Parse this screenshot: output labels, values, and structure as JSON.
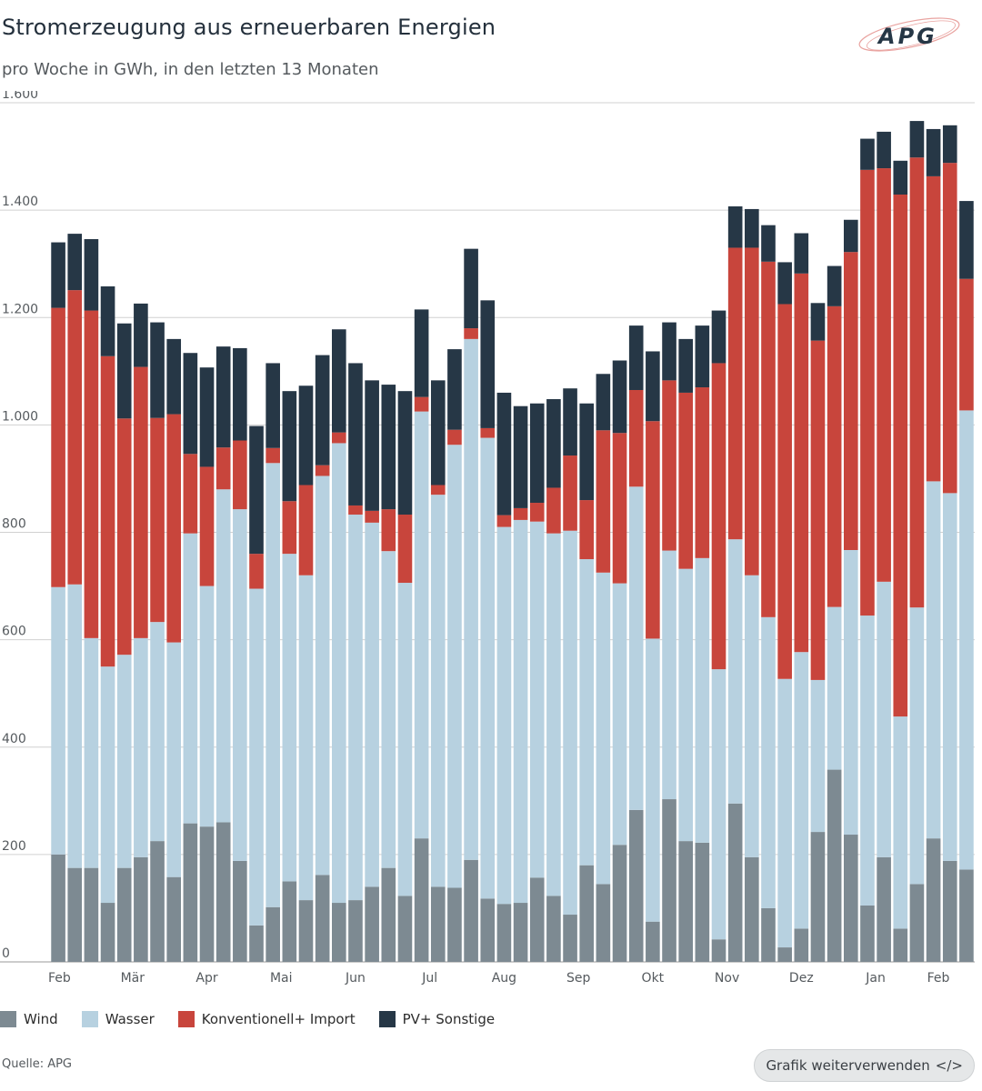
{
  "header": {
    "title": "Stromerzeugung aus erneuerbaren Energien",
    "subtitle": "pro Woche in GWh, in den letzten 13 Monaten",
    "logo_text": "APG"
  },
  "footer": {
    "source": "Quelle: APG",
    "reuse_label": "Grafik weiterverwenden",
    "reuse_icon": "</>"
  },
  "colors": {
    "wind": "#7d8a92",
    "wasser": "#b7d1e0",
    "konventionell": "#c8453c",
    "pv": "#263746",
    "grid": "#d0d0d0",
    "axis_text": "#555a5e"
  },
  "legend": [
    {
      "key": "wind",
      "label": "Wind"
    },
    {
      "key": "wasser",
      "label": "Wasser"
    },
    {
      "key": "konventionell",
      "label": "Konventionell+ Import"
    },
    {
      "key": "pv",
      "label": "PV+ Sonstige"
    }
  ],
  "chart_data": {
    "type": "bar",
    "stacked": true,
    "title": "Stromerzeugung aus erneuerbaren Energien",
    "ylabel": "GWh",
    "ylim": [
      0,
      1600
    ],
    "yticks": [
      0,
      200,
      400,
      600,
      800,
      1000,
      1200,
      1400,
      1600
    ],
    "ytick_labels": [
      "0",
      "200",
      "400",
      "600",
      "800",
      "1.000",
      "1.200",
      "1.400",
      "1.600"
    ],
    "month_labels": [
      {
        "label": "Feb",
        "index": 0
      },
      {
        "label": "Mär",
        "index": 4.5
      },
      {
        "label": "Apr",
        "index": 9
      },
      {
        "label": "Mai",
        "index": 13.5
      },
      {
        "label": "Jun",
        "index": 18
      },
      {
        "label": "Jul",
        "index": 22.5
      },
      {
        "label": "Aug",
        "index": 27
      },
      {
        "label": "Sep",
        "index": 31.5
      },
      {
        "label": "Okt",
        "index": 36
      },
      {
        "label": "Nov",
        "index": 40.5
      },
      {
        "label": "Dez",
        "index": 45
      },
      {
        "label": "Jan",
        "index": 49.5
      },
      {
        "label": "Feb",
        "index": 53.3
      }
    ],
    "series": [
      {
        "name": "Wind",
        "key": "wind",
        "values": [
          200,
          175,
          175,
          110,
          175,
          195,
          225,
          158,
          258,
          252,
          260,
          188,
          68,
          102,
          150,
          115,
          162,
          110,
          115,
          140,
          175,
          123,
          230,
          140,
          138,
          190,
          118,
          108,
          110,
          157,
          123,
          88,
          180,
          145,
          218,
          283,
          75,
          303,
          225,
          222,
          42,
          295,
          195,
          100,
          27,
          62,
          242,
          358,
          237,
          105,
          195,
          62,
          145,
          230,
          188,
          172
        ]
      },
      {
        "name": "Wasser",
        "key": "wasser",
        "values": [
          498,
          528,
          428,
          440,
          397,
          408,
          408,
          437,
          540,
          448,
          620,
          655,
          627,
          827,
          610,
          605,
          743,
          856,
          718,
          678,
          590,
          583,
          795,
          730,
          825,
          970,
          858,
          702,
          713,
          663,
          675,
          715,
          570,
          580,
          487,
          602,
          527,
          463,
          507,
          530,
          503,
          492,
          525,
          542,
          500,
          515,
          283,
          303,
          530,
          540,
          513,
          395,
          515,
          665,
          685,
          855
        ]
      },
      {
        "name": "Konventionell+ Import",
        "key": "konventionell",
        "values": [
          520,
          548,
          610,
          578,
          440,
          505,
          380,
          425,
          148,
          222,
          78,
          128,
          65,
          28,
          98,
          168,
          20,
          20,
          17,
          22,
          78,
          127,
          27,
          18,
          28,
          20,
          18,
          22,
          22,
          35,
          85,
          140,
          110,
          265,
          280,
          180,
          405,
          317,
          328,
          318,
          570,
          543,
          610,
          662,
          698,
          705,
          632,
          560,
          555,
          830,
          770,
          972,
          838,
          568,
          615,
          245
        ]
      },
      {
        "name": "PV+ Sonstige",
        "key": "pv",
        "values": [
          122,
          105,
          133,
          130,
          177,
          118,
          178,
          140,
          188,
          185,
          188,
          172,
          238,
          158,
          205,
          185,
          205,
          192,
          265,
          243,
          232,
          230,
          163,
          195,
          150,
          148,
          238,
          228,
          190,
          185,
          165,
          125,
          180,
          105,
          135,
          120,
          130,
          108,
          100,
          115,
          98,
          77,
          72,
          68,
          78,
          75,
          70,
          75,
          60,
          58,
          68,
          63,
          68,
          88,
          70,
          145
        ]
      }
    ]
  }
}
